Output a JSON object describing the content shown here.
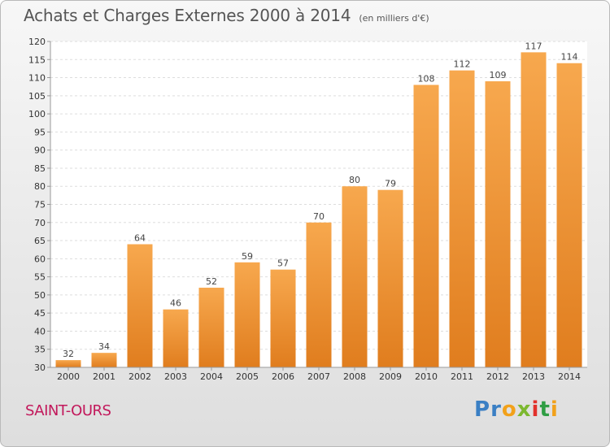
{
  "header": {
    "title": "Achats et Charges Externes 2000 à 2014",
    "unit": "(en milliers d'€)"
  },
  "footer": {
    "commune": "SAINT-OURS",
    "brand": [
      "P",
      "r",
      "o",
      "x",
      "i",
      "t",
      "i"
    ]
  },
  "colors": {
    "bar_top": "#f7a84e",
    "bar_bottom": "#e07d1e",
    "commune": "#c2185b",
    "brand": [
      "#3a7fc4",
      "#3a7fc4",
      "#f2a11a",
      "#7cb82f",
      "#e2312c",
      "#2f9e44",
      "#f2a11a"
    ]
  },
  "chart_data": {
    "type": "bar",
    "categories": [
      "2000",
      "2001",
      "2002",
      "2003",
      "2004",
      "2005",
      "2006",
      "2007",
      "2008",
      "2009",
      "2010",
      "2011",
      "2012",
      "2013",
      "2014"
    ],
    "values": [
      32,
      34,
      64,
      46,
      52,
      59,
      57,
      70,
      80,
      79,
      108,
      112,
      109,
      117,
      114
    ],
    "ylim": [
      30,
      120
    ],
    "yticks": [
      30,
      35,
      40,
      45,
      50,
      55,
      60,
      65,
      70,
      75,
      80,
      85,
      90,
      95,
      100,
      105,
      110,
      115,
      120
    ],
    "grid": true
  }
}
